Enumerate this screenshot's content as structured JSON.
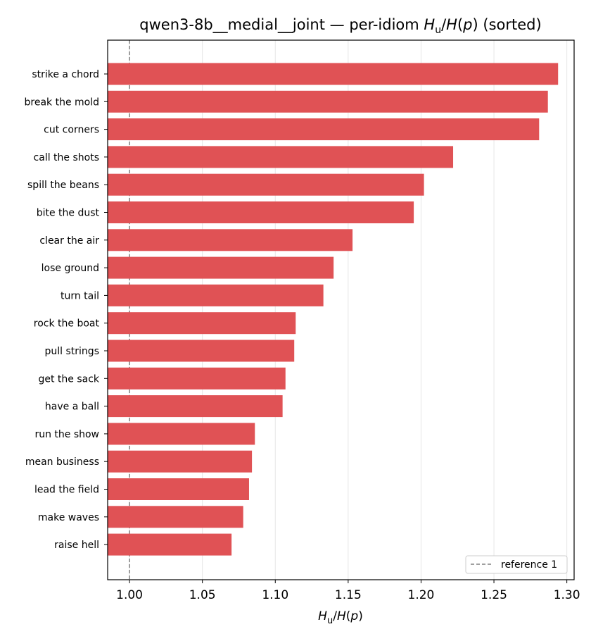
{
  "chart_data": {
    "type": "bar",
    "orientation": "horizontal",
    "title": "qwen3-8b__medial__joint — per-idiom H_u/H(p) (sorted)",
    "title_prefix": "qwen3-8b__medial__joint — per-idiom ",
    "title_suffix": " (sorted)",
    "xlabel": "H_u/H(p)",
    "categories": [
      "strike a chord",
      "break the mold",
      "cut corners",
      "call the shots",
      "spill the beans",
      "bite the dust",
      "clear the air",
      "lose ground",
      "turn tail",
      "rock the boat",
      "pull strings",
      "get the sack",
      "have a ball",
      "run the show",
      "mean business",
      "lead the field",
      "make waves",
      "raise hell"
    ],
    "values": [
      1.294,
      1.287,
      1.281,
      1.222,
      1.202,
      1.195,
      1.153,
      1.14,
      1.133,
      1.114,
      1.113,
      1.107,
      1.105,
      1.086,
      1.084,
      1.082,
      1.078,
      1.07
    ],
    "xlim": [
      0.985,
      1.305
    ],
    "xticks": [
      "1.00",
      "1.05",
      "1.10",
      "1.15",
      "1.20",
      "1.25",
      "1.30"
    ],
    "reference": {
      "value": 1.0,
      "label": "reference 1"
    },
    "bar_color": "#e05255",
    "grid": "vertical",
    "legend_position": "lower right"
  }
}
